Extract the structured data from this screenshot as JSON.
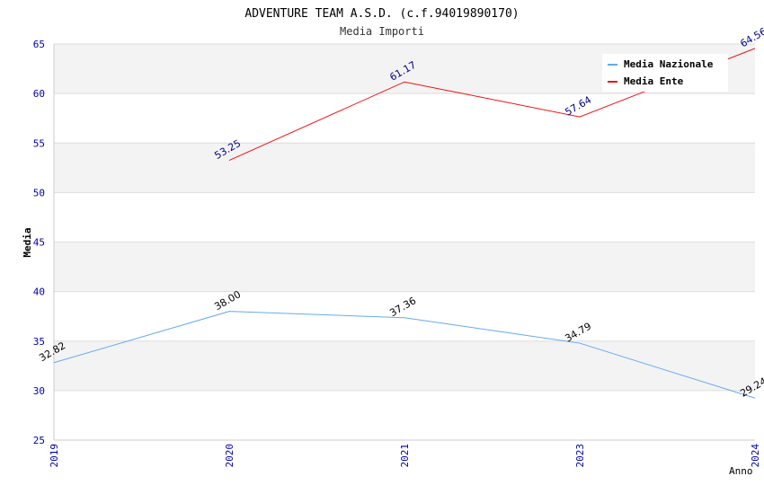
{
  "chart_data": {
    "type": "line",
    "title": "ADVENTURE TEAM A.S.D. (c.f.94019890170)",
    "subtitle": "Media Importi",
    "xlabel": "Anno",
    "ylabel": "Media",
    "x": [
      "2019",
      "2020",
      "2021",
      "2023",
      "2024"
    ],
    "ylim": [
      25,
      65
    ],
    "yticks": [
      "25",
      "30",
      "35",
      "40",
      "45",
      "50",
      "55",
      "60",
      "65"
    ],
    "grid": true,
    "legend_position": "top-right",
    "series": [
      {
        "name": "Media Nazionale",
        "color": "#66aaee",
        "label_color": "#000000",
        "values": [
          32.82,
          38.0,
          37.36,
          34.79,
          29.24
        ],
        "labels": [
          "32.82",
          "38.00",
          "37.36",
          "34.79",
          "29.24"
        ]
      },
      {
        "name": "Media Ente",
        "color": "#ee1111",
        "label_color": "#000080",
        "values": [
          null,
          53.25,
          61.17,
          57.64,
          64.56
        ],
        "labels": [
          "",
          "53.25",
          "61.17",
          "57.64",
          "64.56"
        ]
      }
    ],
    "colors": {
      "axis_text": "#0000aa",
      "band": "#f3f3f3",
      "gridline": "#dddddd"
    }
  }
}
